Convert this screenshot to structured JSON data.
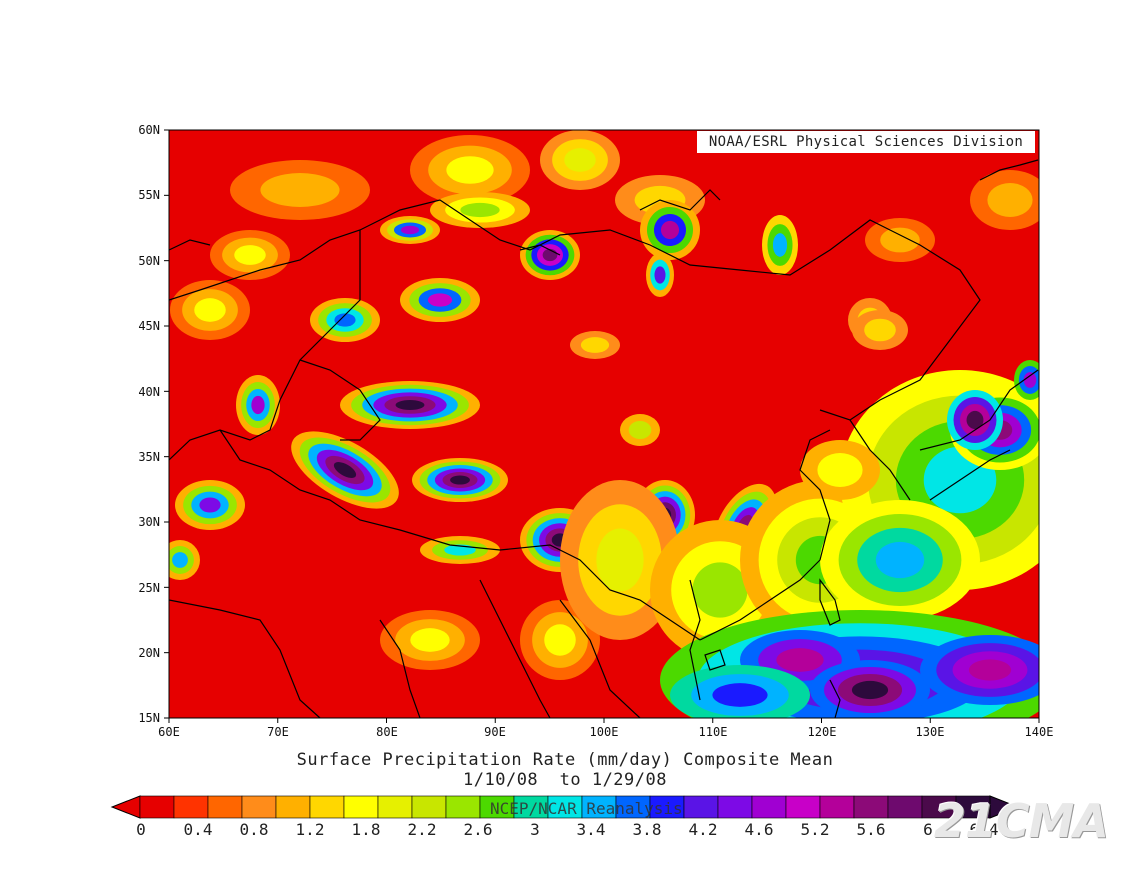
{
  "map": {
    "credit": "NOAA/ESRL Physical Sciences Division",
    "lat_ticks": [
      "60N",
      "55N",
      "50N",
      "45N",
      "40N",
      "35N",
      "30N",
      "25N",
      "20N",
      "15N"
    ],
    "lon_ticks": [
      "60E",
      "70E",
      "80E",
      "90E",
      "100E",
      "110E",
      "120E",
      "130E",
      "140E"
    ]
  },
  "caption": {
    "line1": "Surface Precipitation Rate (mm/day) Composite Mean",
    "line2": "1/10/08  to 1/29/08",
    "source": "NCEP/NCAR Reanalysis"
  },
  "colorbar": {
    "labels": [
      "0",
      "0.4",
      "0.8",
      "1.2",
      "1.8",
      "2.2",
      "2.6",
      "3",
      "3.4",
      "3.8",
      "4.2",
      "4.6",
      "5.2",
      "5.6",
      "6",
      "6.4"
    ],
    "colors": [
      "#e60000",
      "#ff3300",
      "#ff6600",
      "#ff8c1a",
      "#ffb000",
      "#ffd700",
      "#ffff00",
      "#e6f000",
      "#c8e600",
      "#9ae600",
      "#4cd900",
      "#00d9a0",
      "#00e6e6",
      "#00b3ff",
      "#0066ff",
      "#1a1aff",
      "#5a14e6",
      "#7d0ae6",
      "#a000d2",
      "#c800c8",
      "#b4009a",
      "#8c0a78",
      "#6e0a6e",
      "#4b0a4b",
      "#2d0a3c"
    ]
  },
  "watermark": "21CMA"
}
